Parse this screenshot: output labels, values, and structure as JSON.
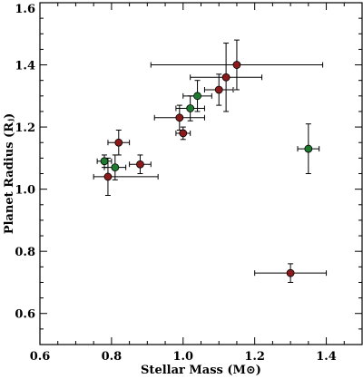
{
  "chart_data": {
    "type": "scatter",
    "title": "",
    "xlabel": "Stellar Mass (M⊙)",
    "ylabel": "Planet Radius (Rⱼ)",
    "xlim": [
      0.6,
      1.5
    ],
    "ylim": [
      0.5,
      1.6
    ],
    "x_ticks": [
      0.6,
      0.8,
      1.0,
      1.2,
      1.4
    ],
    "x_tick_labels": [
      "0.6",
      "0.8",
      "1.0",
      "1.2",
      "1.4"
    ],
    "y_ticks": [
      0.6,
      0.8,
      1.0,
      1.2,
      1.4,
      1.6
    ],
    "y_tick_labels": [
      "0.6",
      "0.8",
      "1.0",
      "1.2",
      "1.4",
      "1.6"
    ],
    "grid": false,
    "colors": {
      "red": "#8b1a1a",
      "green": "#1e7a2e"
    },
    "series": [
      {
        "color_key": "red",
        "points": [
          {
            "x": 0.79,
            "y": 1.04,
            "xerr": [
              0.04,
              0.14
            ],
            "yerr": 0.06
          },
          {
            "x": 0.82,
            "y": 1.15,
            "xerr": 0.03,
            "yerr": 0.04
          },
          {
            "x": 0.88,
            "y": 1.08,
            "xerr": 0.03,
            "yerr": 0.03
          },
          {
            "x": 0.99,
            "y": 1.23,
            "xerr": 0.07,
            "yerr": 0.04
          },
          {
            "x": 1.0,
            "y": 1.18,
            "xerr": 0.02,
            "yerr": 0.02
          },
          {
            "x": 1.1,
            "y": 1.32,
            "xerr": 0.04,
            "yerr": 0.05
          },
          {
            "x": 1.12,
            "y": 1.36,
            "xerr": 0.1,
            "yerr": 0.11
          },
          {
            "x": 1.15,
            "y": 1.4,
            "xerr": 0.24,
            "yerr": 0.08
          },
          {
            "x": 1.3,
            "y": 0.73,
            "xerr": 0.1,
            "yerr": 0.03
          }
        ]
      },
      {
        "color_key": "green",
        "points": [
          {
            "x": 0.78,
            "y": 1.09,
            "xerr": 0.02,
            "yerr": 0.02
          },
          {
            "x": 0.81,
            "y": 1.07,
            "xerr": 0.03,
            "yerr": 0.04
          },
          {
            "x": 1.02,
            "y": 1.26,
            "xerr": 0.04,
            "yerr": 0.04
          },
          {
            "x": 1.04,
            "y": 1.3,
            "xerr": 0.04,
            "yerr": 0.05
          },
          {
            "x": 1.35,
            "y": 1.13,
            "xerr": 0.03,
            "yerr": 0.08
          }
        ]
      }
    ]
  }
}
